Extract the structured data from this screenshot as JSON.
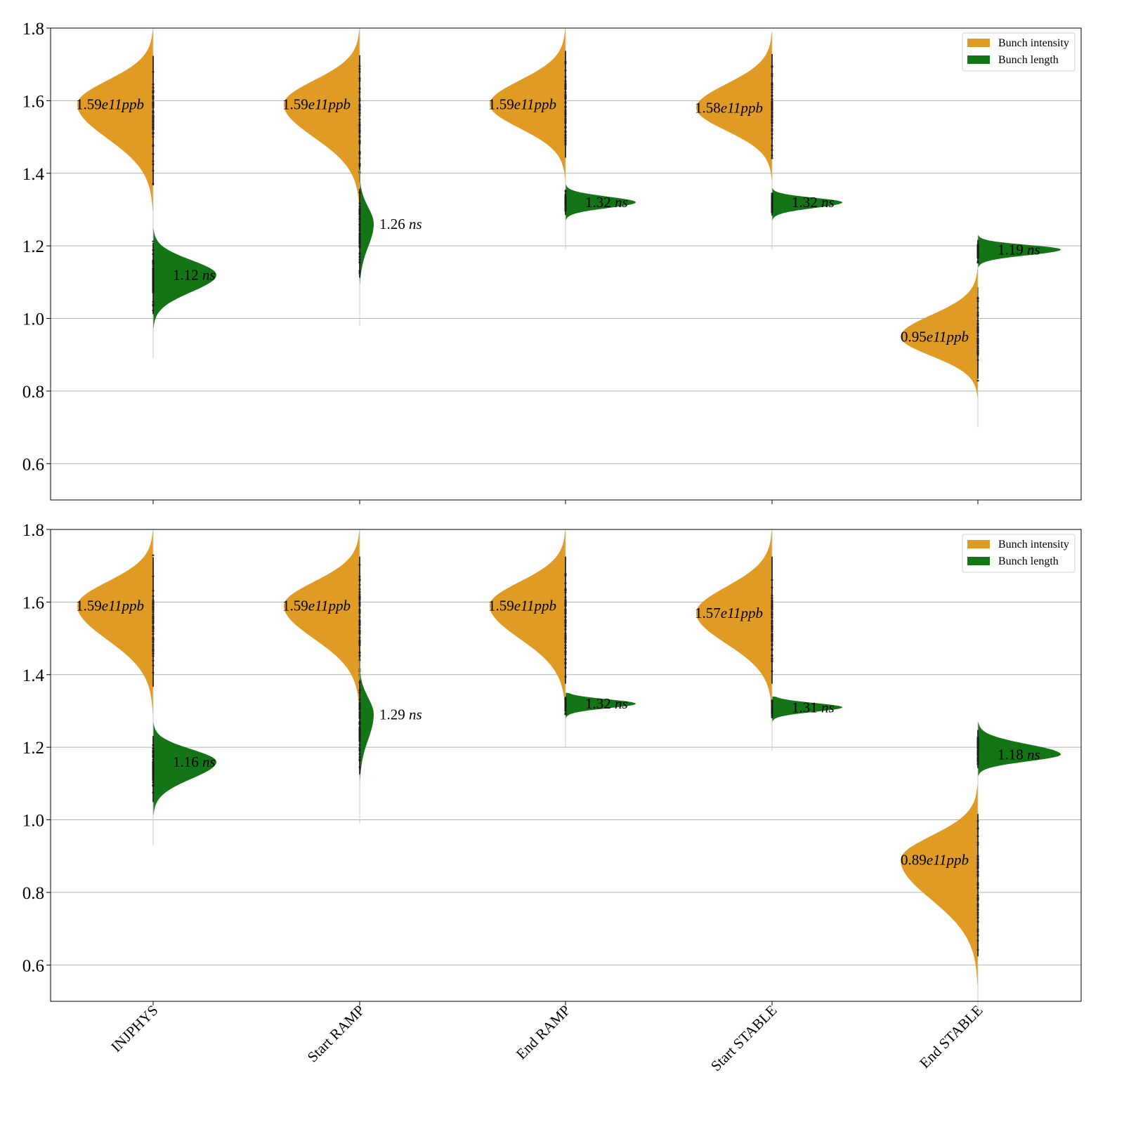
{
  "colors": {
    "intensity": "#e09b24",
    "length": "#137516",
    "grid": "#b0b0b0",
    "points": "#1a1a1a",
    "axes": "#000000"
  },
  "legend": {
    "entries": [
      "Bunch intensity",
      "Bunch length"
    ],
    "placement": "top-right"
  },
  "chart_data": [
    {
      "type": "violin",
      "panel": "top",
      "categories": [
        "INJPHYS",
        "Start RAMP",
        "End RAMP",
        "Start STABLE",
        "End STABLE"
      ],
      "ylim": [
        0.5,
        1.8
      ],
      "yticks": [
        "0.6",
        "0.8",
        "1.0",
        "1.2",
        "1.4",
        "1.6",
        "1.8"
      ],
      "grid": true,
      "series": [
        {
          "name": "Bunch intensity",
          "side": "left",
          "medians": [
            1.59,
            1.59,
            1.59,
            1.58,
            0.95
          ],
          "labels": [
            "1.59e11ppb",
            "1.59e11ppb",
            "1.59e11ppb",
            "1.58e11ppb",
            "0.95e11ppb"
          ],
          "ranges": [
            [
              1.29,
              1.8
            ],
            [
              1.3,
              1.8
            ],
            [
              1.38,
              1.8
            ],
            [
              1.38,
              1.79
            ],
            [
              0.78,
              1.14
            ]
          ]
        },
        {
          "name": "Bunch length",
          "side": "right",
          "medians": [
            1.12,
            1.26,
            1.32,
            1.32,
            1.19
          ],
          "labels": [
            "1.12 ns",
            "1.26 ns",
            "1.32 ns",
            "1.32 ns",
            "1.19 ns"
          ],
          "ranges": [
            [
              0.97,
              1.25
            ],
            [
              1.06,
              1.41
            ],
            [
              1.27,
              1.37
            ],
            [
              1.27,
              1.36
            ],
            [
              1.14,
              1.23
            ]
          ]
        }
      ]
    },
    {
      "type": "violin",
      "panel": "bottom",
      "categories": [
        "INJPHYS",
        "Start RAMP",
        "End RAMP",
        "Start STABLE",
        "End STABLE"
      ],
      "ylim": [
        0.5,
        1.8
      ],
      "yticks": [
        "0.6",
        "0.8",
        "1.0",
        "1.2",
        "1.4",
        "1.6",
        "1.8"
      ],
      "grid": true,
      "series": [
        {
          "name": "Bunch intensity",
          "side": "left",
          "medians": [
            1.59,
            1.59,
            1.59,
            1.57,
            0.89
          ],
          "labels": [
            "1.59e11ppb",
            "1.59e11ppb",
            "1.59e11ppb",
            "1.57e11ppb",
            "0.89e11ppb"
          ],
          "ranges": [
            [
              1.29,
              1.8
            ],
            [
              1.3,
              1.8
            ],
            [
              1.3,
              1.8
            ],
            [
              1.3,
              1.8
            ],
            [
              0.54,
              1.1
            ]
          ]
        },
        {
          "name": "Bunch length",
          "side": "right",
          "medians": [
            1.16,
            1.29,
            1.32,
            1.31,
            1.18
          ],
          "labels": [
            "1.16 ns",
            "1.29 ns",
            "1.32 ns",
            "1.31 ns",
            "1.18 ns"
          ],
          "ranges": [
            [
              1.01,
              1.27
            ],
            [
              1.07,
              1.44
            ],
            [
              1.28,
              1.35
            ],
            [
              1.27,
              1.34
            ],
            [
              1.12,
              1.27
            ]
          ]
        }
      ]
    }
  ]
}
